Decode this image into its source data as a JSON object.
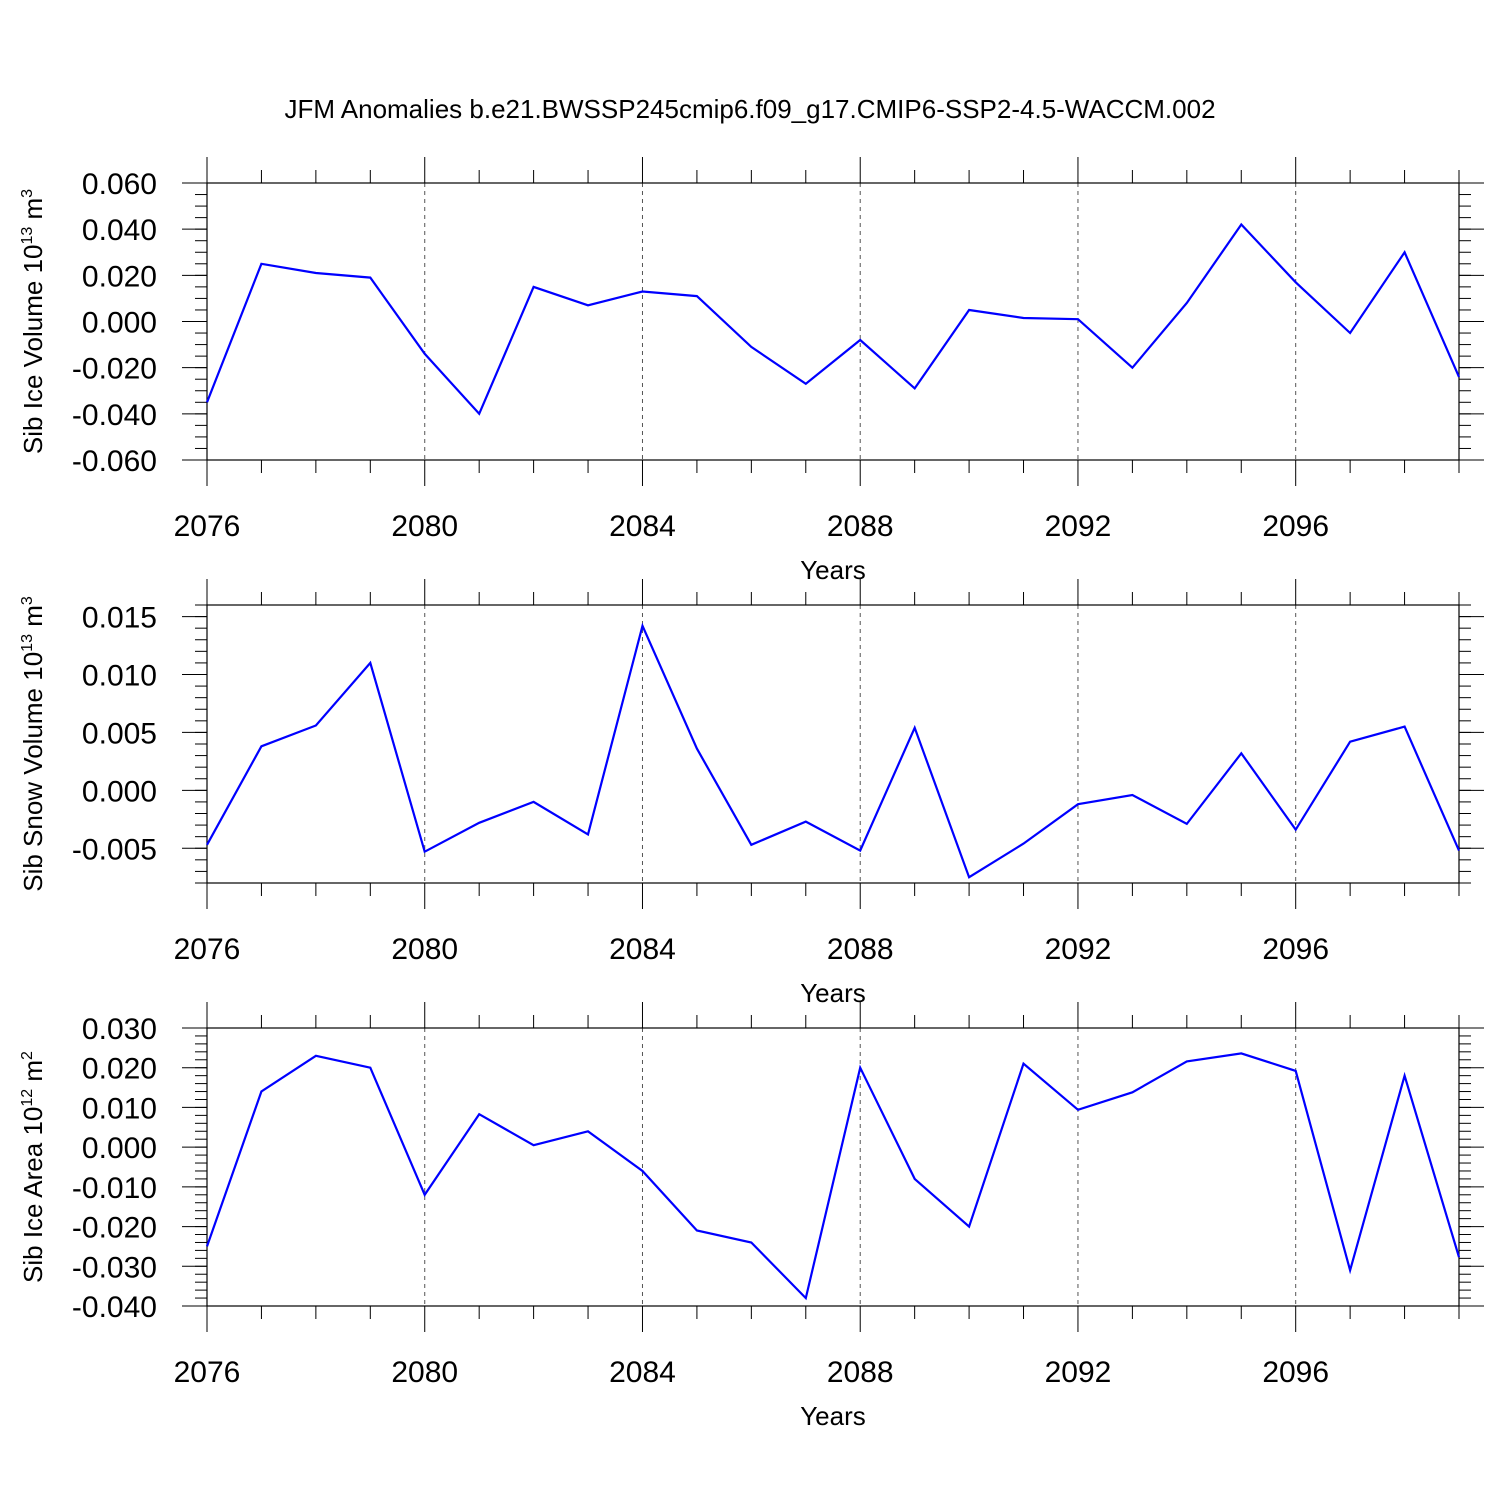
{
  "title": "JFM Anomalies b.e21.BWSSP245cmip6.f09_g17.CMIP6-SSP2-4.5-WACCM.002",
  "line_color": "#0000ff",
  "chart_data": [
    {
      "type": "line",
      "ylabel_text": "Sib Ice Volume 10",
      "ylabel_sup1": "13",
      "ylabel_mid": " m",
      "ylabel_sup2": "3",
      "xlabel": "Years",
      "xlim": [
        2076,
        2099
      ],
      "ylim": [
        -0.06,
        0.06
      ],
      "x_major_ticks": [
        2076,
        2080,
        2084,
        2088,
        2092,
        2096
      ],
      "x_tick_labels": [
        "2076",
        "2080",
        "2084",
        "2088",
        "2092",
        "2096"
      ],
      "y_ticks": [
        0.06,
        0.04,
        0.02,
        0.0,
        -0.02,
        -0.04,
        -0.06
      ],
      "y_tick_labels": [
        "0.060",
        "0.040",
        "0.020",
        "0.000",
        "-0.020",
        "-0.040",
        "-0.060"
      ],
      "y_minor_step": 0.005,
      "x": [
        2076,
        2077,
        2078,
        2079,
        2080,
        2081,
        2082,
        2083,
        2084,
        2085,
        2086,
        2087,
        2088,
        2089,
        2090,
        2091,
        2092,
        2093,
        2094,
        2095,
        2096,
        2097,
        2098,
        2099
      ],
      "values": [
        -0.035,
        0.025,
        0.021,
        0.019,
        -0.014,
        -0.04,
        0.015,
        0.007,
        0.013,
        0.011,
        -0.011,
        -0.027,
        -0.008,
        -0.029,
        0.005,
        0.0015,
        0.001,
        -0.02,
        0.008,
        0.042,
        0.017,
        -0.005,
        0.03,
        -0.024
      ]
    },
    {
      "type": "line",
      "ylabel_text": "Sib Snow Volume 10",
      "ylabel_sup1": "13",
      "ylabel_mid": " m",
      "ylabel_sup2": "3",
      "xlabel": "Years",
      "xlim": [
        2076,
        2099
      ],
      "ylim": [
        -0.008,
        0.016
      ],
      "x_major_ticks": [
        2076,
        2080,
        2084,
        2088,
        2092,
        2096
      ],
      "x_tick_labels": [
        "2076",
        "2080",
        "2084",
        "2088",
        "2092",
        "2096"
      ],
      "y_ticks": [
        0.015,
        0.01,
        0.005,
        0.0,
        -0.005
      ],
      "y_tick_labels": [
        "0.015",
        "0.010",
        "0.005",
        "0.000",
        "-0.005"
      ],
      "y_minor_step": 0.001,
      "x": [
        2076,
        2077,
        2078,
        2079,
        2080,
        2081,
        2082,
        2083,
        2084,
        2085,
        2086,
        2087,
        2088,
        2089,
        2090,
        2091,
        2092,
        2093,
        2094,
        2095,
        2096,
        2097,
        2098,
        2099
      ],
      "values": [
        -0.0047,
        0.0038,
        0.0056,
        0.011,
        -0.0053,
        -0.0028,
        -0.001,
        -0.0038,
        0.0142,
        0.0036,
        -0.0047,
        -0.0027,
        -0.0052,
        0.0054,
        -0.0075,
        -0.0046,
        -0.0012,
        -0.0004,
        -0.0029,
        0.0032,
        -0.0034,
        0.0042,
        0.0055,
        -0.0052
      ]
    },
    {
      "type": "line",
      "ylabel_text": "Sib Ice Area 10",
      "ylabel_sup1": "12",
      "ylabel_mid": " m",
      "ylabel_sup2": "2",
      "xlabel": "Years",
      "xlim": [
        2076,
        2099
      ],
      "ylim": [
        -0.04,
        0.03
      ],
      "x_major_ticks": [
        2076,
        2080,
        2084,
        2088,
        2092,
        2096
      ],
      "x_tick_labels": [
        "2076",
        "2080",
        "2084",
        "2088",
        "2092",
        "2096"
      ],
      "y_ticks": [
        0.03,
        0.02,
        0.01,
        0.0,
        -0.01,
        -0.02,
        -0.03,
        -0.04
      ],
      "y_tick_labels": [
        "0.030",
        "0.020",
        "0.010",
        "0.000",
        "-0.010",
        "-0.020",
        "-0.030",
        "-0.040"
      ],
      "y_minor_step": 0.002,
      "x": [
        2076,
        2077,
        2078,
        2079,
        2080,
        2081,
        2082,
        2083,
        2084,
        2085,
        2086,
        2087,
        2088,
        2089,
        2090,
        2091,
        2092,
        2093,
        2094,
        2095,
        2096,
        2097,
        2098,
        2099
      ],
      "values": [
        -0.025,
        0.014,
        0.023,
        0.02,
        -0.012,
        0.0083,
        0.0005,
        0.004,
        -0.006,
        -0.021,
        -0.024,
        -0.038,
        0.02,
        -0.008,
        -0.02,
        0.021,
        0.0094,
        0.0138,
        0.0216,
        0.0236,
        0.0192,
        -0.031,
        0.018,
        -0.0277
      ]
    }
  ]
}
